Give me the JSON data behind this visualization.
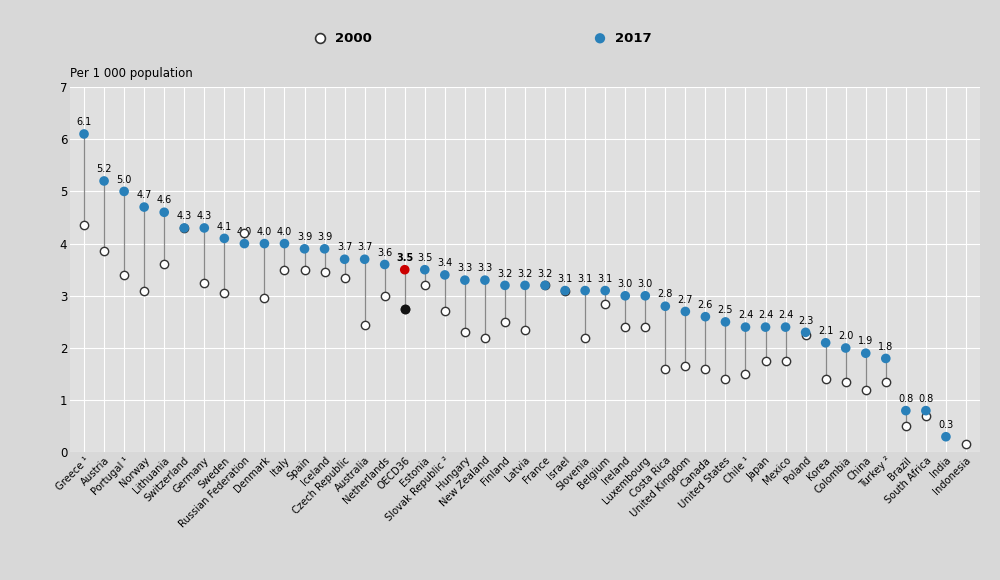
{
  "countries": [
    "Greece ¹",
    "Austria",
    "Portugal ¹",
    "Norway",
    "Lithuania",
    "Switzerland",
    "Germany",
    "Sweden",
    "Russian Federation",
    "Denmark",
    "Italy",
    "Spain",
    "Iceland",
    "Czech Republic",
    "Australia",
    "Netherlands",
    "OECD36",
    "Estonia",
    "Slovak Republic ²",
    "Hungary",
    "New Zealand",
    "Finland",
    "Latvia",
    "France",
    "Israel",
    "Slovenia",
    "Belgium",
    "Ireland",
    "Luxembourg",
    "Costa Rica",
    "United Kingdom",
    "Canada",
    "United States",
    "Chile ¹",
    "Japan",
    "Mexico",
    "Poland",
    "Korea",
    "Colombia",
    "China",
    "Turkey ²",
    "Brazil",
    "South Africa",
    "India",
    "Indonesia"
  ],
  "val2017": [
    6.1,
    5.2,
    5.0,
    4.7,
    4.6,
    4.3,
    4.3,
    4.1,
    4.0,
    4.0,
    4.0,
    3.9,
    3.9,
    3.7,
    3.7,
    3.6,
    3.5,
    3.5,
    3.4,
    3.3,
    3.3,
    3.2,
    3.2,
    3.2,
    3.1,
    3.1,
    3.1,
    3.0,
    3.0,
    2.8,
    2.7,
    2.6,
    2.5,
    2.4,
    2.4,
    2.4,
    2.3,
    2.1,
    2.0,
    1.9,
    1.8,
    0.8,
    0.8,
    0.3,
    null
  ],
  "val2000": [
    4.35,
    3.85,
    3.4,
    3.1,
    3.6,
    4.3,
    3.25,
    3.05,
    4.2,
    2.95,
    3.5,
    3.5,
    3.45,
    3.35,
    2.45,
    3.0,
    2.75,
    3.2,
    2.7,
    2.3,
    2.2,
    2.5,
    2.35,
    3.2,
    3.1,
    2.2,
    2.85,
    2.4,
    2.4,
    1.6,
    1.65,
    1.6,
    1.4,
    1.5,
    1.75,
    1.75,
    2.25,
    1.4,
    1.35,
    1.2,
    1.35,
    0.5,
    0.7,
    null,
    0.16
  ],
  "dot2017_colors": [
    "#2980b9",
    "#2980b9",
    "#2980b9",
    "#2980b9",
    "#2980b9",
    "#2980b9",
    "#2980b9",
    "#2980b9",
    "#2980b9",
    "#2980b9",
    "#2980b9",
    "#2980b9",
    "#2980b9",
    "#2980b9",
    "#2980b9",
    "#2980b9",
    "#cc0000",
    "#2980b9",
    "#2980b9",
    "#2980b9",
    "#2980b9",
    "#2980b9",
    "#2980b9",
    "#2980b9",
    "#2980b9",
    "#2980b9",
    "#2980b9",
    "#2980b9",
    "#2980b9",
    "#2980b9",
    "#2980b9",
    "#2980b9",
    "#2980b9",
    "#2980b9",
    "#2980b9",
    "#2980b9",
    "#2980b9",
    "#2980b9",
    "#2980b9",
    "#2980b9",
    "#2980b9",
    "#2980b9",
    "#2980b9",
    "#2980b9",
    "#2980b9"
  ],
  "line_color": "#888888",
  "header_bg": "#d8d8d8",
  "plot_bg": "#e0e0e0",
  "fig_bg": "#d8d8d8",
  "ylim": [
    0,
    7
  ],
  "yticks": [
    0,
    1,
    2,
    3,
    4,
    5,
    6,
    7
  ],
  "ylabel": "Per 1 000 population",
  "label_fontsize": 7.2,
  "tick_fontsize": 8.5,
  "annot_fontsize": 7.0,
  "legend_fontsize": 9.5
}
